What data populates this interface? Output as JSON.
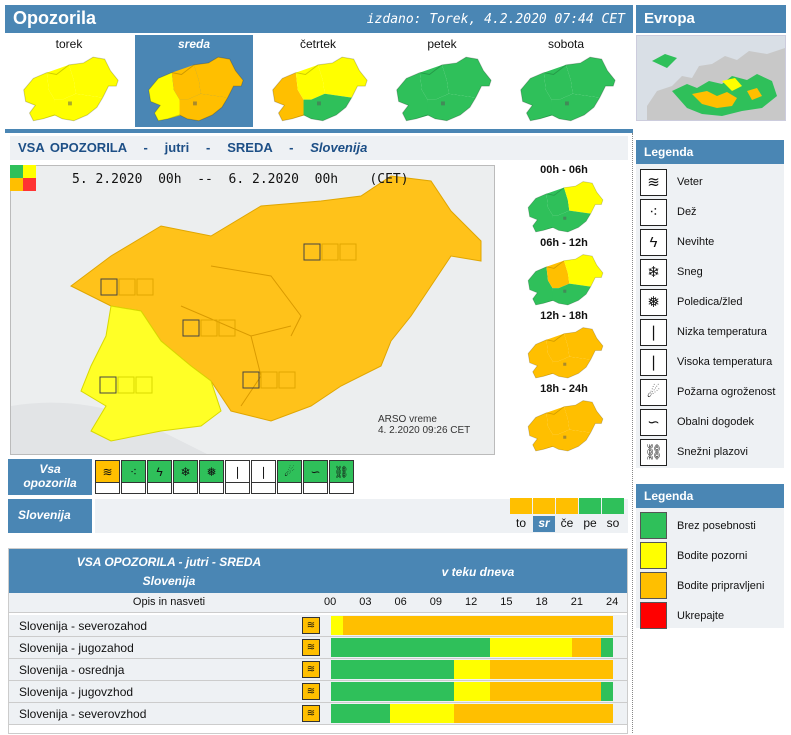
{
  "header": {
    "title": "Opozorila",
    "issued": "izdano: Torek, 4.2.2020 07:44 CET"
  },
  "europe": {
    "title": "Evropa"
  },
  "days": [
    {
      "label": "torek",
      "selected": false
    },
    {
      "label": "sreda",
      "selected": true
    },
    {
      "label": "četrtek",
      "selected": false
    },
    {
      "label": "petek",
      "selected": false
    },
    {
      "label": "sobota",
      "selected": false
    }
  ],
  "main_title": {
    "a": "VSA OPOZORILA",
    "b": "jutri",
    "c": "SREDA",
    "d": "Slovenija"
  },
  "map": {
    "range": "5. 2.2020  00h  --  6. 2.2020  00h    (CET)",
    "credit_line1": "ARSO vreme",
    "credit_line2": "4. 2.2020  09:26 CET"
  },
  "six_hour": [
    "00h - 06h",
    "06h - 12h",
    "12h - 18h",
    "18h - 24h"
  ],
  "type_strip": {
    "label_line1": "Vsa",
    "label_line2": "opozorila",
    "region_label": "Slovenija"
  },
  "type_icons": [
    {
      "icon": "wind-icon",
      "glyph": "≋",
      "level": "orange"
    },
    {
      "icon": "rain-icon",
      "glyph": "⁖",
      "level": "green"
    },
    {
      "icon": "storm-icon",
      "glyph": "ϟ",
      "level": "green"
    },
    {
      "icon": "snow-icon",
      "glyph": "❄",
      "level": "green"
    },
    {
      "icon": "ice-icon",
      "glyph": "❅",
      "level": "green"
    },
    {
      "icon": "low-temp-icon",
      "glyph": "❘",
      "level": "white"
    },
    {
      "icon": "high-temp-icon",
      "glyph": "❘",
      "level": "white"
    },
    {
      "icon": "fire-icon",
      "glyph": "☄",
      "level": "green"
    },
    {
      "icon": "coastal-icon",
      "glyph": "∽",
      "level": "green"
    },
    {
      "icon": "avalanche-icon",
      "glyph": "⛓",
      "level": "green"
    }
  ],
  "day_levels": [
    {
      "label": "to",
      "color": "#ffbf00",
      "selected": false
    },
    {
      "label": "sr",
      "color": "#ffbf00",
      "selected": true
    },
    {
      "label": "če",
      "color": "#ffbf00",
      "selected": false
    },
    {
      "label": "pe",
      "color": "#2fc05a",
      "selected": false
    },
    {
      "label": "so",
      "color": "#2fc05a",
      "selected": false
    }
  ],
  "legend_types": {
    "title": "Legenda",
    "items": [
      {
        "icon": "wind-icon",
        "glyph": "≋",
        "label": "Veter"
      },
      {
        "icon": "rain-icon",
        "glyph": "⁖",
        "label": "Dež"
      },
      {
        "icon": "storm-icon",
        "glyph": "ϟ",
        "label": "Nevihte"
      },
      {
        "icon": "snow-icon",
        "glyph": "❄",
        "label": "Sneg"
      },
      {
        "icon": "ice-icon",
        "glyph": "❅",
        "label": "Poledica/žled"
      },
      {
        "icon": "low-temp-icon",
        "glyph": "❘",
        "label": "Nizka temperatura"
      },
      {
        "icon": "high-temp-icon",
        "glyph": "❘",
        "label": "Visoka temperatura"
      },
      {
        "icon": "fire-icon",
        "glyph": "☄",
        "label": "Požarna ogroženost"
      },
      {
        "icon": "coastal-icon",
        "glyph": "∽",
        "label": "Obalni dogodek"
      },
      {
        "icon": "avalanche-icon",
        "glyph": "⛓",
        "label": "Snežni plazovi"
      }
    ]
  },
  "legend_levels": {
    "title": "Legenda",
    "items": [
      {
        "color": "#2fc05a",
        "label": "Brez posebnosti"
      },
      {
        "color": "#ffff00",
        "label": "Bodite pozorni"
      },
      {
        "color": "#ffbf00",
        "label": "Bodite pripravljeni"
      },
      {
        "color": "#ff0000",
        "label": "Ukrepajte"
      }
    ]
  },
  "table": {
    "title_line1": "VSA OPOZORILA - jutri - SREDA",
    "title_line2": "Slovenija",
    "period": "v teku dneva",
    "opis": "Opis in nasveti",
    "hours": [
      "00",
      "03",
      "06",
      "09",
      "12",
      "15",
      "18",
      "21",
      "24"
    ],
    "rows": [
      {
        "name": "Slovenija - severozahod",
        "segments": [
          [
            "#ffff00",
            0,
            1
          ],
          [
            "#ffbf00",
            1,
            24
          ]
        ]
      },
      {
        "name": "Slovenija - jugozahod",
        "segments": [
          [
            "#2fc05a",
            0,
            13.5
          ],
          [
            "#ffff00",
            13.5,
            20.5
          ],
          [
            "#ffbf00",
            20.5,
            23
          ],
          [
            "#2fc05a",
            23,
            24
          ]
        ]
      },
      {
        "name": "Slovenija - osrednja",
        "segments": [
          [
            "#2fc05a",
            0,
            10.5
          ],
          [
            "#ffff00",
            10.5,
            13.5
          ],
          [
            "#ffbf00",
            13.5,
            24
          ]
        ]
      },
      {
        "name": "Slovenija - jugovzhod",
        "segments": [
          [
            "#2fc05a",
            0,
            10.5
          ],
          [
            "#ffff00",
            10.5,
            13.5
          ],
          [
            "#ffbf00",
            13.5,
            23
          ],
          [
            "#2fc05a",
            23,
            24
          ]
        ]
      },
      {
        "name": "Slovenija - severovzhod",
        "segments": [
          [
            "#2fc05a",
            0,
            5
          ],
          [
            "#ffff00",
            5,
            10.5
          ],
          [
            "#ffbf00",
            10.5,
            24
          ]
        ]
      }
    ]
  }
}
